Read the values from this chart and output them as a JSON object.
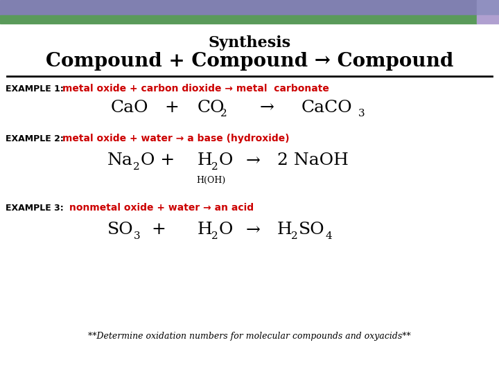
{
  "title_line1": "Synthesis",
  "title_line2": "Compound + Compound → Compound",
  "bg_color": "#ffffff",
  "bar_purple": "#8080b0",
  "bar_green": "#5a9a5a",
  "bar_purple_small": "#9090c0",
  "ex1_label": "EXAMPLE 1:",
  "ex1_red": "metal oxide + carbon dioxide → metal  carbonate",
  "ex2_label": "EXAMPLE 2:",
  "ex2_red": "metal oxide + water → a base (hydroxide)",
  "ex3_label": "EXAMPLE 3:",
  "ex3_red": "nonmetal oxide + water → an acid",
  "footnote": "**Determine oxidation numbers for molecular compounds and oxyacids**",
  "red_color": "#cc0000",
  "black_color": "#000000",
  "title1_fs": 16,
  "title2_fs": 20,
  "label_fs": 9,
  "red_fs": 10,
  "formula_fs": 18,
  "sub_fs": 11,
  "hoh_fs": 9,
  "footnote_fs": 9
}
